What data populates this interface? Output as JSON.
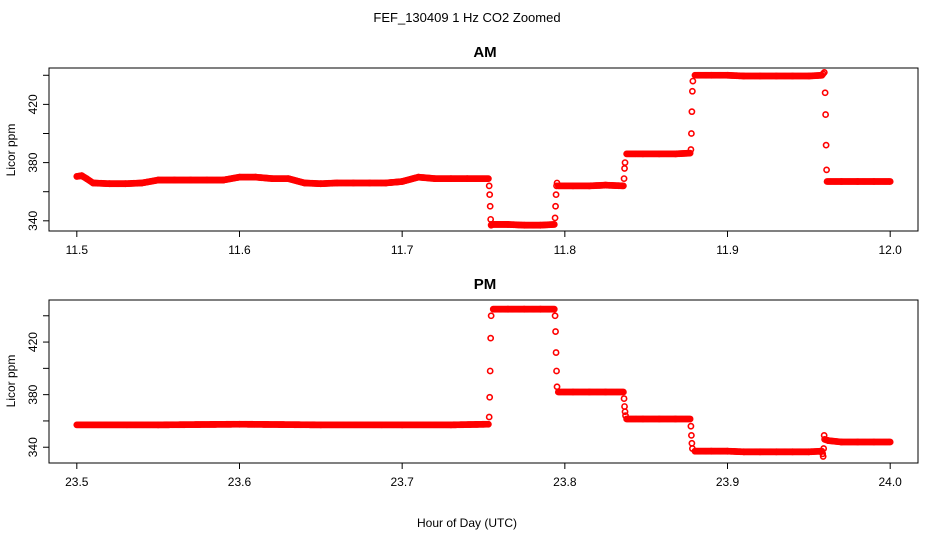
{
  "chart_data": {
    "type": "scatter",
    "title": "FEF_130409  1 Hz CO2 Zoomed",
    "xlabel": "Hour of Day (UTC)",
    "marker_color": "#ff0000",
    "marker": "open-circle",
    "grid": false,
    "panels": [
      {
        "title": "AM",
        "ylabel": "Licor ppm",
        "xlim": [
          11.5,
          12.0
        ],
        "ylim": [
          333,
          445
        ],
        "xticks": [
          "11.5",
          "11.6",
          "11.7",
          "11.8",
          "11.9",
          "12.0"
        ],
        "yticks": [
          "340",
          "380",
          "420"
        ],
        "segments": [
          {
            "x": [
              11.5,
              11.503,
              11.506,
              11.51,
              11.52,
              11.53,
              11.54,
              11.55,
              11.56,
              11.57,
              11.58,
              11.59,
              11.6,
              11.61,
              11.62,
              11.63,
              11.64,
              11.65,
              11.66,
              11.67,
              11.68,
              11.69,
              11.7,
              11.71,
              11.72,
              11.73,
              11.74,
              11.753
            ],
            "y": [
              370.5,
              371,
              369,
              366,
              365.5,
              365.5,
              366,
              368,
              368,
              368,
              368,
              368,
              370,
              370,
              369,
              369,
              366,
              365.5,
              366,
              366,
              366,
              366,
              367,
              370,
              369,
              369,
              369,
              369
            ]
          },
          {
            "x": [
              11.7535,
              11.7538,
              11.7541,
              11.7544,
              11.7547
            ],
            "y": [
              364,
              358,
              350,
              341,
              337
            ]
          },
          {
            "x": [
              11.755,
              11.765,
              11.775,
              11.785,
              11.7935
            ],
            "y": [
              337.5,
              337.5,
              337,
              337,
              337.5
            ]
          },
          {
            "x": [
              11.794,
              11.7943,
              11.7946,
              11.7949,
              11.7952
            ],
            "y": [
              342,
              350,
              358,
              364,
              366
            ]
          },
          {
            "x": [
              11.796,
              11.805,
              11.815,
              11.825,
              11.836
            ],
            "y": [
              364,
              364,
              364,
              364.5,
              364
            ]
          },
          {
            "x": [
              11.8364,
              11.8367,
              11.837
            ],
            "y": [
              369,
              376,
              380
            ]
          },
          {
            "x": [
              11.838,
              11.848,
              11.858,
              11.868,
              11.877
            ],
            "y": [
              386,
              386,
              386,
              386,
              386.5
            ]
          },
          {
            "x": [
              11.8775,
              11.8778,
              11.8781,
              11.8784,
              11.8787
            ],
            "y": [
              389,
              400,
              415,
              429,
              436
            ]
          },
          {
            "x": [
              11.88,
              11.89,
              11.9,
              11.91,
              11.92,
              11.93,
              11.94,
              11.95,
              11.958,
              11.9595
            ],
            "y": [
              440,
              440,
              440,
              439.5,
              439.5,
              439.5,
              439.5,
              439.5,
              440,
              442
            ]
          },
          {
            "x": [
              11.96,
              11.9603,
              11.9606,
              11.9609,
              11.9612
            ],
            "y": [
              428,
              413,
              392,
              375,
              367
            ]
          },
          {
            "x": [
              11.962,
              11.97,
              11.98,
              11.99,
              12.0
            ],
            "y": [
              367,
              367,
              367,
              367,
              367
            ]
          }
        ]
      },
      {
        "title": "PM",
        "ylabel": "Licor ppm",
        "xlim": [
          23.5,
          24.0
        ],
        "ylim": [
          328,
          452
        ],
        "xticks": [
          "23.5",
          "23.6",
          "23.7",
          "23.8",
          "23.9",
          "24.0"
        ],
        "yticks": [
          "340",
          "380",
          "420"
        ],
        "segments": [
          {
            "x": [
              23.5,
              23.55,
              23.6,
              23.65,
              23.7,
              23.73,
              23.753
            ],
            "y": [
              357,
              357,
              357.5,
              357,
              357,
              357,
              357.5
            ]
          },
          {
            "x": [
              23.7535,
              23.7538,
              23.7541,
              23.7544,
              23.7547
            ],
            "y": [
              363,
              378,
              398,
              423,
              440
            ]
          },
          {
            "x": [
              23.756,
              23.765,
              23.775,
              23.785,
              23.7935
            ],
            "y": [
              445,
              445,
              445,
              445,
              445
            ]
          },
          {
            "x": [
              23.794,
              23.7943,
              23.7946,
              23.7949,
              23.7952
            ],
            "y": [
              440,
              428,
              412,
              398,
              386
            ]
          },
          {
            "x": [
              23.796,
              23.805,
              23.815,
              23.825,
              23.836
            ],
            "y": [
              382,
              382,
              382,
              382,
              382
            ]
          },
          {
            "x": [
              23.8364,
              23.8367,
              23.837,
              23.8373
            ],
            "y": [
              377,
              371,
              367,
              364
            ]
          },
          {
            "x": [
              23.838,
              23.848,
              23.858,
              23.868,
              23.877
            ],
            "y": [
              361.5,
              361.5,
              361.5,
              361.5,
              361.5
            ]
          },
          {
            "x": [
              23.8775,
              23.8778,
              23.8781,
              23.8784
            ],
            "y": [
              356,
              349,
              343,
              339
            ]
          },
          {
            "x": [
              23.88,
              23.89,
              23.9,
              23.91,
              23.92,
              23.93,
              23.94,
              23.95,
              23.958
            ],
            "y": [
              337,
              337,
              337,
              336.5,
              336.5,
              336.5,
              336.5,
              336.5,
              337
            ]
          },
          {
            "x": [
              23.9585,
              23.9588,
              23.9591,
              23.9594
            ],
            "y": [
              335,
              333,
              339,
              349
            ]
          },
          {
            "x": [
              23.9597,
              23.962,
              23.97,
              23.98,
              23.99,
              24.0
            ],
            "y": [
              346,
              345,
              344,
              344,
              344,
              344
            ]
          }
        ]
      }
    ]
  }
}
